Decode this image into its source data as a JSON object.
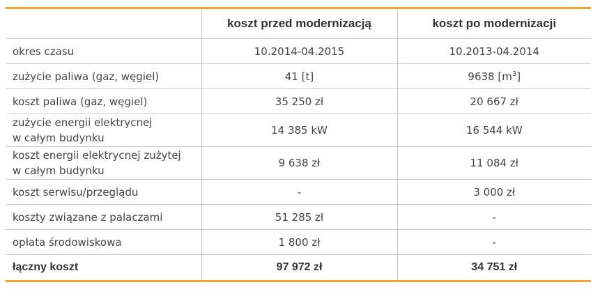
{
  "table": {
    "headers": [
      "",
      "koszt przed modernizacją",
      "koszt po modernizacji"
    ],
    "rows": [
      {
        "label": "okres czasu",
        "before": "10.2014-04.2015",
        "after": "10.2013-04.2014"
      },
      {
        "label": "zużycie paliwa (gaz, węgiel)",
        "before": "41 [t]",
        "after_main": "9638 [m",
        "after_sup": "3",
        "after_end": "]"
      },
      {
        "label": "koszt paliwa (gaz, węgiel)",
        "before": "35 250 zł",
        "after": "20 667 zł"
      },
      {
        "label_line1": "zużycie energii elektrycnej",
        "label_line2": "w całym budynku",
        "before": "14 385 kW",
        "after": "16 544 kW"
      },
      {
        "label_line1": "koszt energii elektrycnej zużytej",
        "label_line2": "w całym budynku",
        "before": "9 638 zł",
        "after": "11 084 zł"
      },
      {
        "label": "koszt serwisu/przeglądu",
        "before": "-",
        "after": "3 000 zł"
      },
      {
        "label": "koszty związane z palaczami",
        "before": "51 285 zł",
        "after": "-"
      },
      {
        "label": "opłata środowiskowa",
        "before": "1 800 zł",
        "after": "-"
      }
    ],
    "total": {
      "label": "łączny koszt",
      "before": "97 972 zł",
      "after": "34 751 zł"
    }
  },
  "colors": {
    "accent": "#f0a232",
    "grid": "#c8c8c8",
    "text": "#444444"
  }
}
